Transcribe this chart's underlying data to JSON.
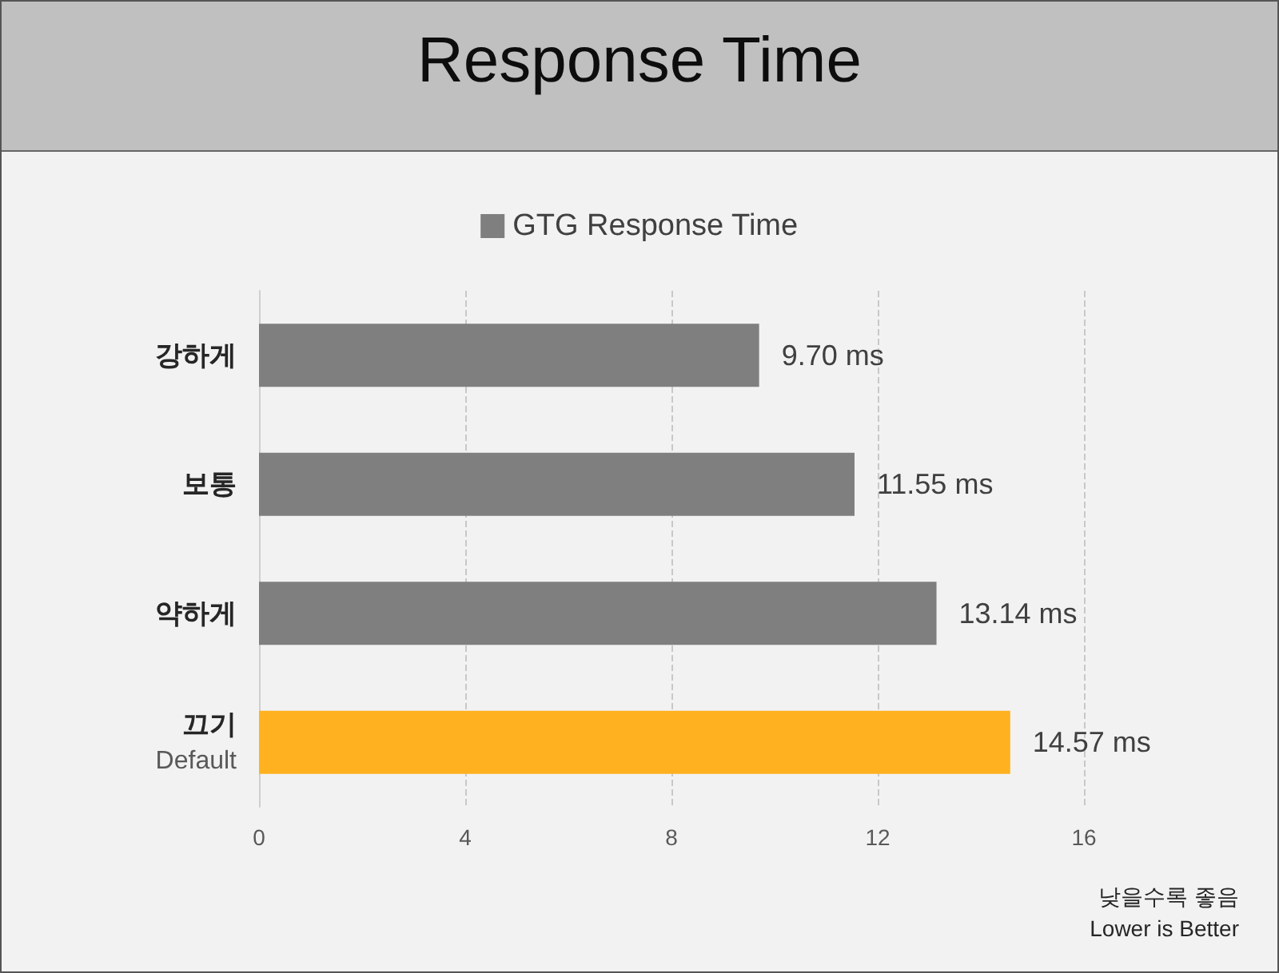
{
  "chart_data": {
    "type": "bar",
    "orientation": "horizontal",
    "title": "Response Time",
    "categories": [
      "강하게",
      "보통",
      "약하게",
      "끄기\nDefault"
    ],
    "series": [
      {
        "name": "GTG Response Time",
        "color": "#7f7f7f",
        "colors": [
          "#7f7f7f",
          "#7f7f7f",
          "#7f7f7f",
          "#ffb11f"
        ],
        "values": [
          9.7,
          11.55,
          13.14,
          14.57
        ],
        "value_labels": [
          "9.70 ms",
          "11.55 ms",
          "13.14 ms",
          "14.57 ms"
        ]
      }
    ],
    "xlim": [
      0,
      16
    ],
    "xticks": [
      0,
      4,
      8,
      12,
      16
    ],
    "grid": "x",
    "legend": "top",
    "annotations": [
      "낮을수록 좋음",
      "Lower is Better"
    ]
  }
}
